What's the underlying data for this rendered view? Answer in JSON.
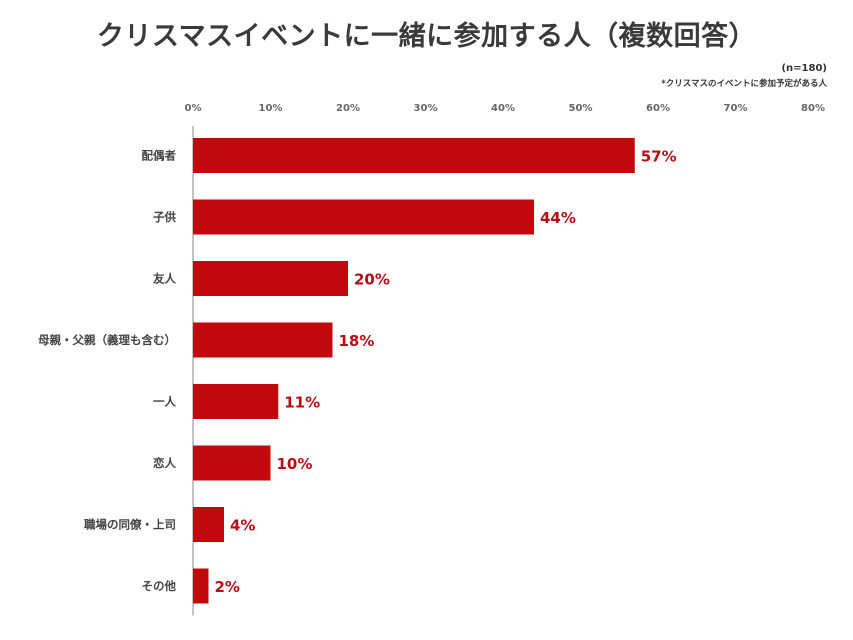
{
  "title": "クリスマスイベントに一緒に参加する人（複数回答）",
  "sample_size": "(n=180)",
  "note": "*クリスマスのイベントに参加予定がある人",
  "colors": {
    "bar": "#c0080d",
    "data_label": "#b50f15",
    "axis_line": "#888888"
  },
  "chart_data": {
    "type": "bar",
    "orientation": "horizontal",
    "title": "クリスマスイベントに一緒に参加する人（複数回答）",
    "categories": [
      "配偶者",
      "子供",
      "友人",
      "母親・父親（義理も含む）",
      "一人",
      "恋人",
      "職場の同僚・上司",
      "その他"
    ],
    "values": [
      57,
      44,
      20,
      18,
      11,
      10,
      4,
      2
    ],
    "value_labels": [
      "57%",
      "44%",
      "20%",
      "18%",
      "11%",
      "10%",
      "4%",
      "2%"
    ],
    "unit": "%",
    "xlim": [
      0,
      80
    ],
    "x_ticks": [
      "0%",
      "10%",
      "20%",
      "30%",
      "40%",
      "50%",
      "60%",
      "70%",
      "80%"
    ],
    "axis_position": "top",
    "grid": false,
    "legend": "none"
  }
}
